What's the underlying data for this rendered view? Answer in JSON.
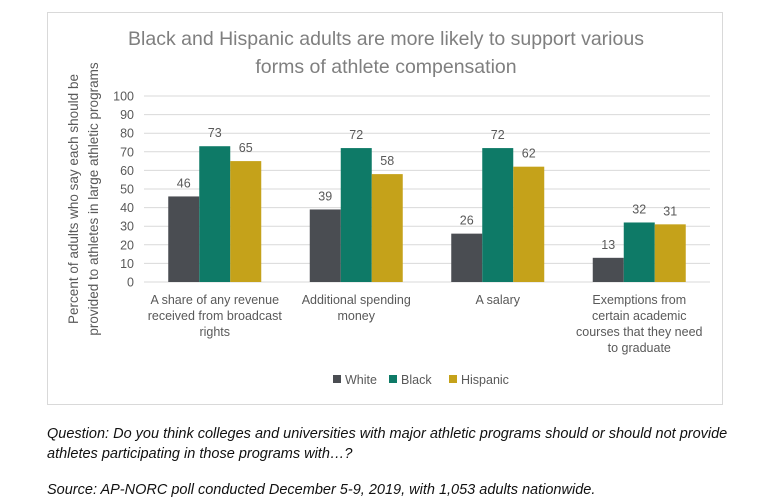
{
  "question_text": "Question: Do you think colleges and universities with major athletic programs should or should not provide athletes participating in those programs with…?",
  "source_text": "Source: AP-NORC poll conducted December 5-9, 2019, with 1,053 adults nationwide.",
  "colors": {
    "White": "#4a4d52",
    "Black": "#0e7a67",
    "Hispanic": "#c5a21a",
    "grid": "#d9d9d9",
    "text": "#595959",
    "title": "#7f7f7f"
  },
  "chart_data": {
    "type": "bar",
    "title_lines": [
      "Black and Hispanic adults are more likely to support various",
      "forms of athlete compensation"
    ],
    "ylabel_lines": [
      "Percent of adults who say each should be",
      "provided to athletes in large athletic programs"
    ],
    "xlabel": "",
    "ylim": [
      0,
      100
    ],
    "yticks": [
      0,
      10,
      20,
      30,
      40,
      50,
      60,
      70,
      80,
      90,
      100
    ],
    "grid": true,
    "legend_position": "bottom",
    "categories": [
      [
        "A share of any revenue",
        "received from broadcast",
        "rights"
      ],
      [
        "Additional spending",
        "money"
      ],
      [
        "A salary"
      ],
      [
        "Exemptions from",
        "certain academic",
        "courses that they need",
        "to graduate"
      ]
    ],
    "series": [
      {
        "name": "White",
        "values": [
          46,
          39,
          26,
          13
        ]
      },
      {
        "name": "Black",
        "values": [
          73,
          72,
          72,
          32
        ]
      },
      {
        "name": "Hispanic",
        "values": [
          65,
          58,
          62,
          31
        ]
      }
    ]
  }
}
